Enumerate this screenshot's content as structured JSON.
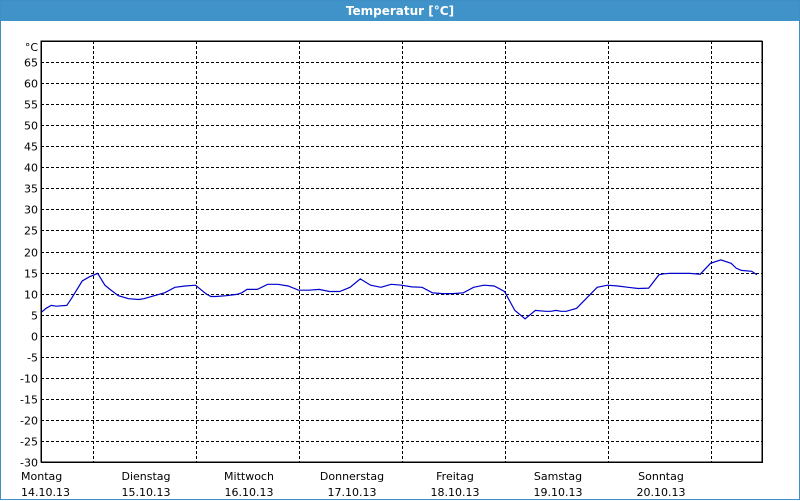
{
  "window": {
    "title": "Temperatur [°C]"
  },
  "chart_data": {
    "type": "line",
    "title": "Temperatur [°C]",
    "ylabel": "°C",
    "ylim": [
      -30,
      65
    ],
    "yticks": [
      65,
      60,
      55,
      50,
      45,
      40,
      35,
      30,
      25,
      20,
      15,
      10,
      5,
      0,
      -5,
      -10,
      -15,
      -20,
      -25,
      -30
    ],
    "grid": true,
    "xlim": [
      0,
      7
    ],
    "xticks": [
      {
        "day": "Montag",
        "date": "14.10.13",
        "x": 0
      },
      {
        "day": "Dienstag",
        "date": "15.10.13",
        "x": 1
      },
      {
        "day": "Mittwoch",
        "date": "16.10.13",
        "x": 2
      },
      {
        "day": "Donnerstag",
        "date": "17.10.13",
        "x": 3
      },
      {
        "day": "Freitag",
        "date": "18.10.13",
        "x": 4
      },
      {
        "day": "Samstag",
        "date": "19.10.13",
        "x": 5
      },
      {
        "day": "Sonntag",
        "date": "20.10.13",
        "x": 6
      }
    ],
    "series": [
      {
        "color": "#0000cc",
        "x": [
          0,
          0.05,
          0.1,
          0.15,
          0.25,
          0.3,
          0.4,
          0.47,
          0.55,
          0.62,
          0.67,
          0.75,
          0.85,
          0.95,
          1.0,
          1.1,
          1.2,
          1.3,
          1.4,
          1.5,
          1.6,
          1.65,
          1.7,
          1.8,
          1.9,
          1.95,
          2.0,
          2.1,
          2.2,
          2.3,
          2.4,
          2.5,
          2.55,
          2.6,
          2.7,
          2.8,
          2.9,
          3.0,
          3.1,
          3.2,
          3.3,
          3.4,
          3.5,
          3.6,
          3.7,
          3.8,
          3.9,
          4.0,
          4.1,
          4.2,
          4.3,
          4.4,
          4.5,
          4.6,
          4.7,
          4.8,
          4.9,
          4.95,
          5.0,
          5.05,
          5.1,
          5.2,
          5.3,
          5.4,
          5.5,
          5.6,
          5.7,
          5.8,
          5.9,
          6.0,
          6.05,
          6.1,
          6.2,
          6.3,
          6.4,
          6.5,
          6.6,
          6.7,
          6.75,
          6.8,
          6.9,
          6.95
        ],
        "y": [
          5.5,
          6.5,
          7.2,
          7,
          7.2,
          9,
          13,
          14,
          14.8,
          12,
          11,
          9.5,
          8.8,
          8.6,
          8.8,
          9.5,
          10.2,
          11.5,
          11.8,
          12,
          10,
          9.3,
          9.3,
          9.5,
          9.8,
          10.2,
          11,
          11,
          12.2,
          12.2,
          11.8,
          10.8,
          10.8,
          10.8,
          11,
          10.5,
          10.5,
          11.5,
          13.5,
          12,
          11.5,
          12.2,
          12,
          11.6,
          11.5,
          10.2,
          10,
          10,
          10.2,
          11.5,
          12,
          11.8,
          10.5,
          6,
          4,
          6,
          5.8,
          5.8,
          6,
          5.8,
          5.8,
          6.5,
          9,
          11.5,
          12,
          11.8,
          11.5,
          11.2,
          11.3,
          14.5,
          14.7,
          14.8,
          14.8,
          14.8,
          14.6,
          17.2,
          18,
          17.2,
          16,
          15.5,
          15.3,
          14.5
        ]
      }
    ]
  }
}
